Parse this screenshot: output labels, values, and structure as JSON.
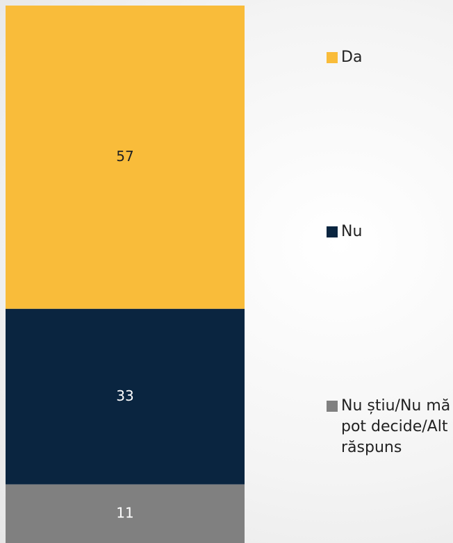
{
  "chart_data": {
    "type": "stacked_bar",
    "series": [
      {
        "name": "Da",
        "color": "#f9bc3a",
        "values": [
          57
        ]
      },
      {
        "name": "Nu",
        "color": "#0a2540",
        "values": [
          33
        ]
      },
      {
        "name": "Nu știu/Nu mă pot decide/Alt răspuns",
        "color": "#808080",
        "values": [
          11
        ]
      }
    ],
    "legend": "right"
  }
}
